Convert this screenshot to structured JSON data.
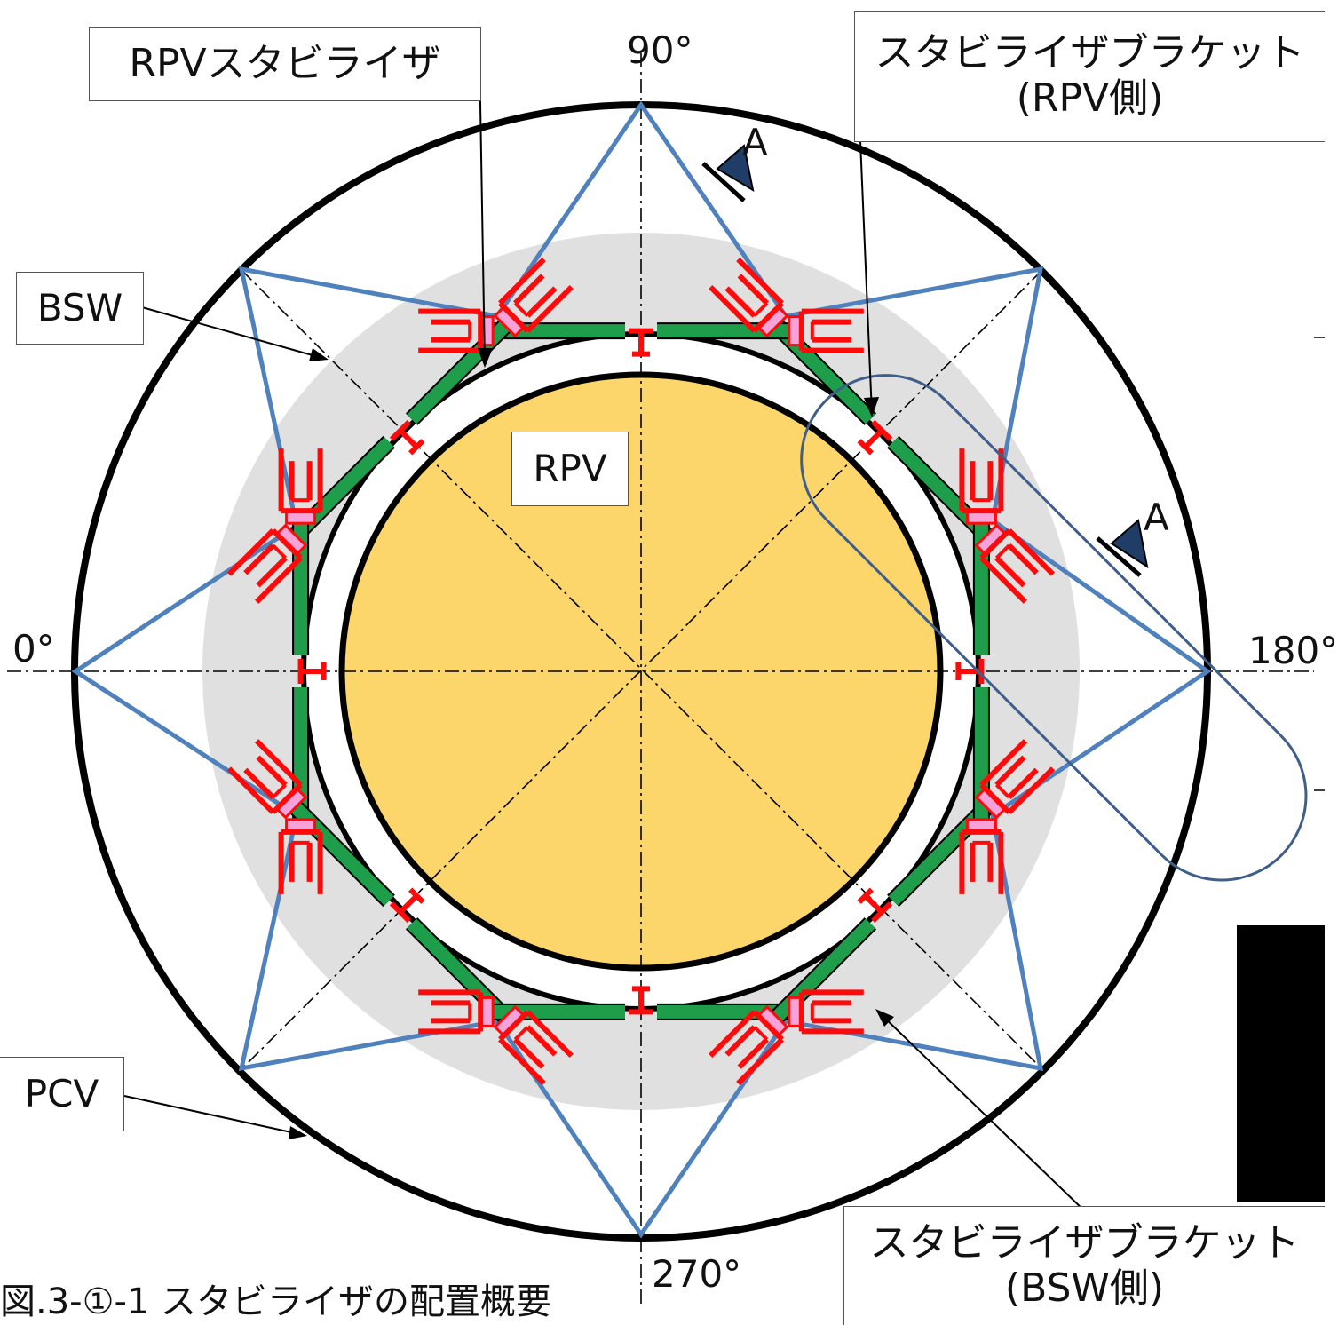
{
  "labels": {
    "rpv_stabilizer": "RPVスタビライザ",
    "bracket_rpv_line1": "スタビライザブラケット",
    "bracket_rpv_line2": "(RPV側)",
    "bracket_bsw_line1": "スタビライザブラケット",
    "bracket_bsw_line2": "(BSW側)",
    "bsw": "BSW",
    "pcv": "PCV",
    "rpv": "RPV",
    "section_a1": "A",
    "section_a2": "A"
  },
  "angles": {
    "deg_90": "90°",
    "deg_0": "0°",
    "deg_180": "180°",
    "deg_270": "270°"
  },
  "caption": "図.3-①-1 スタビライザの配置概要",
  "colors": {
    "rpv_fill": "#FCD66A",
    "bsw_fill": "#E0E0E0",
    "stabilizer_green": "#1E9E4A",
    "bracket_red": "#FF0A0A",
    "bracket_pink": "#F7A2D8",
    "star_blue": "#4F81BD",
    "highlight_oval": "#3F5F8A"
  }
}
